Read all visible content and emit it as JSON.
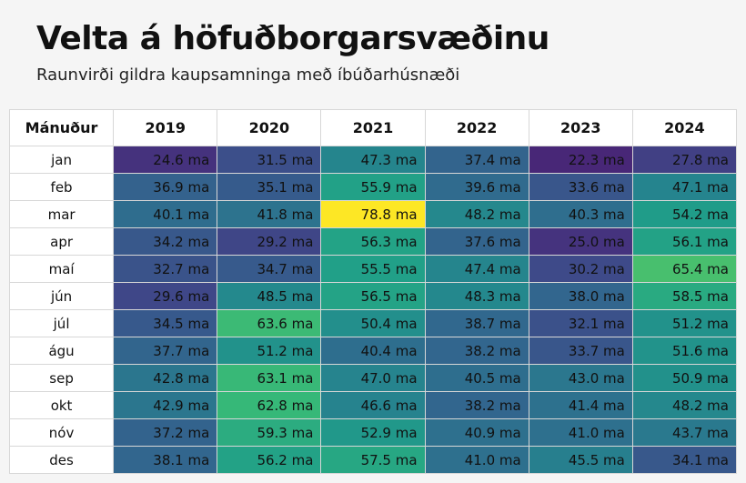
{
  "title": "Velta á höfuðborgarsvæðinu",
  "subtitle": "Raunvirði gildra kaupsamninga með íbúðarhúsnæði",
  "row_header_label": "Mánuður",
  "unit_suffix": " ma",
  "chart_data": {
    "type": "heatmap",
    "title": "Velta á höfuðborgarsvæðinu",
    "subtitle": "Raunvirði gildra kaupsamninga með íbúðarhúsnæði",
    "row_label": "Mánuður",
    "columns": [
      "2019",
      "2020",
      "2021",
      "2022",
      "2023",
      "2024"
    ],
    "rows": [
      "jan",
      "feb",
      "mar",
      "apr",
      "maí",
      "jún",
      "júl",
      "águ",
      "sep",
      "okt",
      "nóv",
      "des"
    ],
    "values": [
      [
        24.6,
        31.5,
        47.3,
        37.4,
        22.3,
        27.8
      ],
      [
        36.9,
        35.1,
        55.9,
        39.6,
        33.6,
        47.1
      ],
      [
        40.1,
        41.8,
        78.8,
        48.2,
        40.3,
        54.2
      ],
      [
        34.2,
        29.2,
        56.3,
        37.6,
        25.0,
        56.1
      ],
      [
        32.7,
        34.7,
        55.5,
        47.4,
        30.2,
        65.4
      ],
      [
        29.6,
        48.5,
        56.5,
        48.3,
        38.0,
        58.5
      ],
      [
        34.5,
        63.6,
        50.4,
        38.7,
        32.1,
        51.2
      ],
      [
        37.7,
        51.2,
        40.4,
        38.2,
        33.7,
        51.6
      ],
      [
        42.8,
        63.1,
        47.0,
        40.5,
        43.0,
        50.9
      ],
      [
        42.9,
        62.8,
        46.6,
        38.2,
        41.4,
        48.2
      ],
      [
        37.2,
        59.3,
        52.9,
        40.9,
        41.0,
        43.7
      ],
      [
        38.1,
        56.2,
        57.5,
        41.0,
        45.5,
        34.1
      ]
    ],
    "colorscale": "viridis",
    "color_range": [
      22.3,
      78.8
    ]
  }
}
